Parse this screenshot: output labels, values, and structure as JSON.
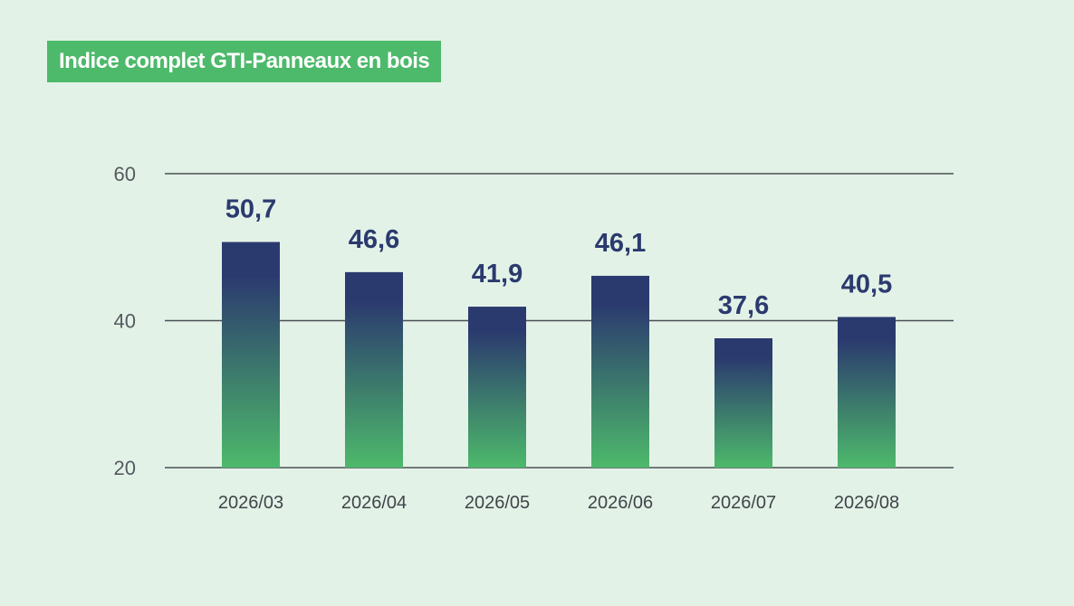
{
  "colors": {
    "background": "#e3f2e7",
    "title_bg": "#4db96b",
    "bar_top": "#2b3a6e",
    "bar_bottom": "#4db96b",
    "label": "#2b3a6e",
    "gridline": "#4a4f54"
  },
  "chart_data": {
    "type": "bar",
    "title": "Indice complet GTI-Panneaux en bois",
    "xlabel": "",
    "ylabel": "",
    "categories": [
      "2026/03",
      "2026/04",
      "2026/05",
      "2026/06",
      "2026/07",
      "2026/08"
    ],
    "values": [
      50.7,
      46.6,
      41.9,
      46.1,
      37.6,
      40.5
    ],
    "value_labels": [
      "50,7",
      "46,6",
      "41,9",
      "46,1",
      "37,6",
      "40,5"
    ],
    "ylim": [
      20,
      60
    ],
    "yticks": [
      20,
      40,
      60
    ],
    "grid": true,
    "legend": "none"
  }
}
